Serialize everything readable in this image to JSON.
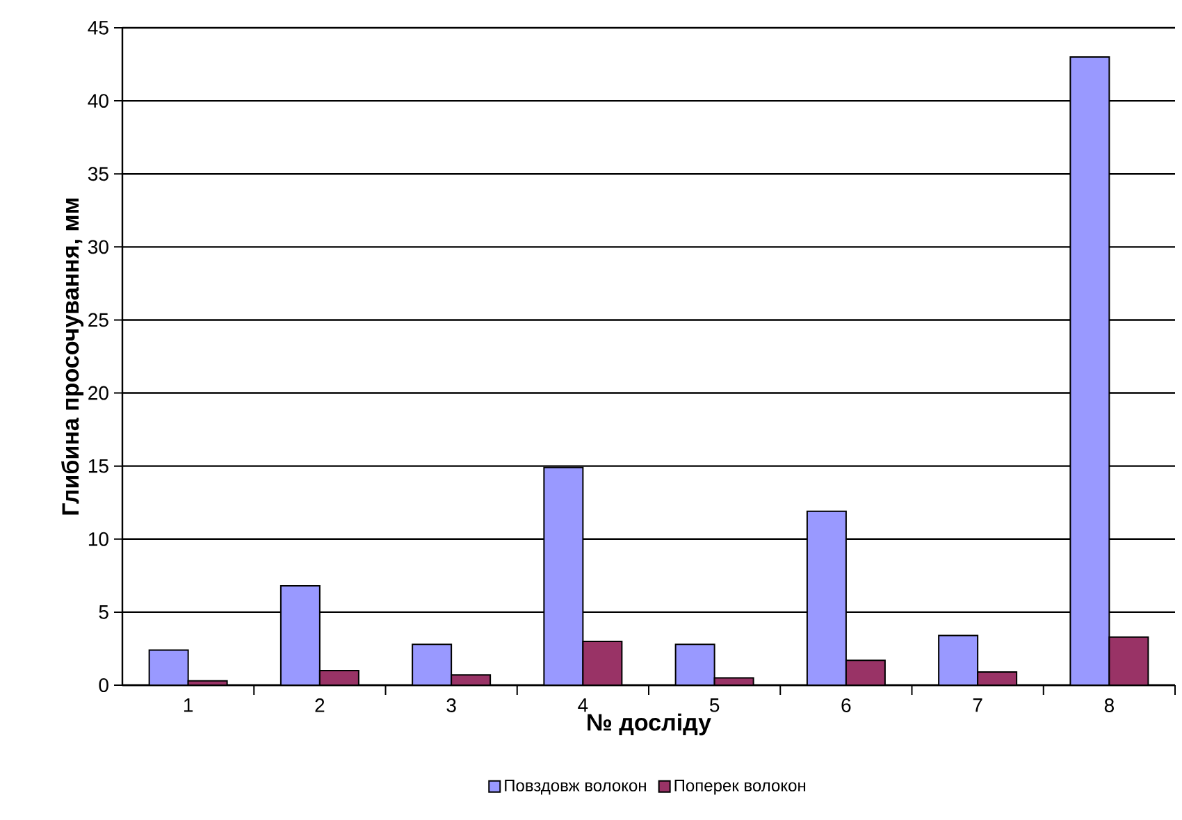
{
  "chart_data": {
    "type": "bar",
    "xlabel": "№ досліду",
    "ylabel": "Глибина просочування, мм",
    "categories": [
      "1",
      "2",
      "3",
      "4",
      "5",
      "6",
      "7",
      "8"
    ],
    "series": [
      {
        "name": "Повздовж волокон",
        "color": "#9999ff",
        "values": [
          2.4,
          6.8,
          2.8,
          14.9,
          2.8,
          11.9,
          3.4,
          43
        ]
      },
      {
        "name": "Поперек волокон",
        "color": "#993366",
        "values": [
          0.3,
          1.0,
          0.7,
          3.0,
          0.5,
          1.7,
          0.9,
          3.3
        ]
      }
    ],
    "ylim": [
      0,
      45
    ],
    "yticks": [
      0,
      5,
      10,
      15,
      20,
      25,
      30,
      35,
      40,
      45
    ],
    "grid": "y",
    "legend": "bottom"
  }
}
